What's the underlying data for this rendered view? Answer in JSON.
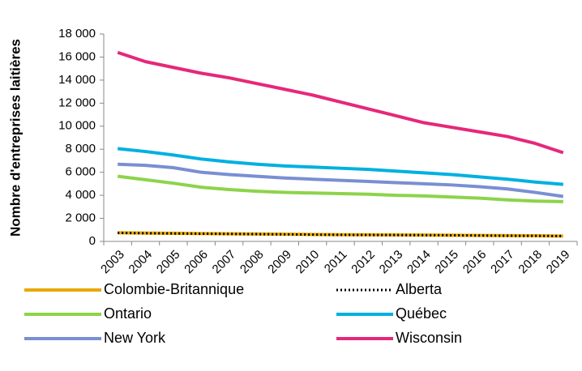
{
  "chart_data": {
    "type": "line",
    "y_label": "Nombre d'entreprises laitières",
    "categories": [
      "2003",
      "2004",
      "2005",
      "2006",
      "2007",
      "2008",
      "2009",
      "2010",
      "2011",
      "2012",
      "2013",
      "2014",
      "2015",
      "2016",
      "2017",
      "2018",
      "2019"
    ],
    "series": [
      {
        "name": "Colombie-Britannique",
        "color": "#e8a800",
        "linestyle": "solid",
        "values": [
          750,
          720,
          700,
          680,
          660,
          640,
          620,
          600,
          580,
          570,
          560,
          550,
          540,
          520,
          500,
          490,
          470
        ]
      },
      {
        "name": "Alberta",
        "color": "#000000",
        "linestyle": "dotted",
        "values": [
          740,
          710,
          690,
          670,
          650,
          630,
          610,
          590,
          570,
          560,
          550,
          540,
          530,
          510,
          490,
          480,
          460
        ]
      },
      {
        "name": "Ontario",
        "color": "#8dd34b",
        "linestyle": "solid",
        "values": [
          5650,
          5350,
          5050,
          4700,
          4500,
          4350,
          4250,
          4200,
          4150,
          4100,
          4000,
          3950,
          3850,
          3750,
          3600,
          3500,
          3450
        ]
      },
      {
        "name": "Québec",
        "color": "#00b0e0",
        "linestyle": "solid",
        "values": [
          8050,
          7800,
          7500,
          7150,
          6900,
          6700,
          6550,
          6450,
          6350,
          6250,
          6100,
          5950,
          5800,
          5600,
          5400,
          5150,
          4950
        ]
      },
      {
        "name": "New York",
        "color": "#7a8fd2",
        "linestyle": "solid",
        "values": [
          6700,
          6600,
          6400,
          6000,
          5800,
          5650,
          5500,
          5400,
          5300,
          5200,
          5100,
          5000,
          4900,
          4750,
          4550,
          4250,
          3900
        ]
      },
      {
        "name": "Wisconsin",
        "color": "#e5287a",
        "linestyle": "solid",
        "values": [
          16400,
          15600,
          15100,
          14600,
          14200,
          13700,
          13200,
          12700,
          12100,
          11500,
          10900,
          10300,
          9900,
          9500,
          9100,
          8500,
          7700
        ]
      }
    ],
    "ylim": [
      0,
      18000
    ],
    "yticks": [
      0,
      {
        "value": 2000,
        "label": "2 000"
      },
      {
        "value": 4000,
        "label": "4 000"
      },
      {
        "value": 6000,
        "label": "6 000"
      },
      {
        "value": 8000,
        "label": "8 000"
      },
      {
        "value": 10000,
        "label": "10 000"
      },
      {
        "value": 12000,
        "label": "12 000"
      },
      {
        "value": 14000,
        "label": "14 000"
      },
      {
        "value": 16000,
        "label": "16 000"
      },
      {
        "value": 18000,
        "label": "18 000"
      }
    ],
    "grid": false
  }
}
